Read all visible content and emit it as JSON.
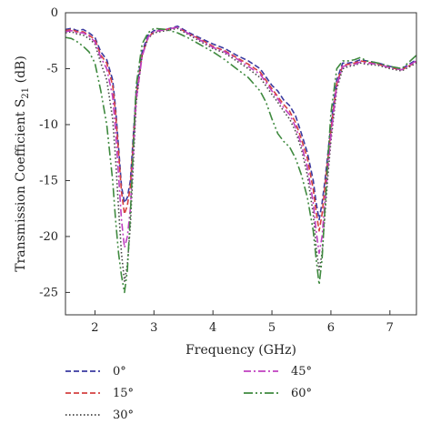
{
  "chart_data": {
    "type": "line",
    "xlabel": "Frequency (GHz)",
    "ylabel_main": "Transmission Coefficient S",
    "ylabel_sub": "21",
    "ylabel_unit": " (dB)",
    "xlim": [
      1.5,
      7.45
    ],
    "ylim": [
      -27,
      0
    ],
    "xticks": [
      2,
      3,
      4,
      5,
      6,
      7
    ],
    "yticks": [
      0,
      -5,
      -10,
      -15,
      -20,
      -25
    ],
    "grid": false,
    "legend_position": "bottom",
    "series": [
      {
        "name": "0°",
        "color": "#3a3aa0",
        "dash": "6,3",
        "x": [
          1.5,
          1.6,
          1.7,
          1.8,
          1.9,
          2.0,
          2.1,
          2.2,
          2.3,
          2.35,
          2.4,
          2.45,
          2.5,
          2.55,
          2.6,
          2.65,
          2.7,
          2.8,
          2.9,
          3.0,
          3.2,
          3.4,
          3.6,
          3.8,
          4.0,
          4.2,
          4.4,
          4.6,
          4.8,
          5.0,
          5.1,
          5.2,
          5.3,
          5.4,
          5.5,
          5.6,
          5.7,
          5.75,
          5.8,
          5.85,
          5.9,
          5.95,
          6.0,
          6.1,
          6.2,
          6.3,
          6.4,
          6.5,
          6.6,
          6.8,
          7.0,
          7.2,
          7.45
        ],
        "y": [
          -1.5,
          -1.4,
          -1.6,
          -1.5,
          -1.8,
          -2.2,
          -3.5,
          -4.2,
          -6.0,
          -8.5,
          -12.0,
          -15.5,
          -17.0,
          -16.5,
          -15.0,
          -11.0,
          -7.0,
          -3.5,
          -2.0,
          -1.6,
          -1.5,
          -1.2,
          -1.8,
          -2.3,
          -2.8,
          -3.2,
          -3.8,
          -4.3,
          -5.0,
          -6.5,
          -7.0,
          -7.8,
          -8.3,
          -9.2,
          -10.8,
          -12.5,
          -15.0,
          -17.0,
          -18.5,
          -17.0,
          -15.0,
          -12.5,
          -10.0,
          -6.0,
          -4.5,
          -4.5,
          -4.4,
          -4.2,
          -4.3,
          -4.5,
          -4.8,
          -5.0,
          -4.2
        ]
      },
      {
        "name": "15°",
        "color": "#d44040",
        "dash": "6,3",
        "x": [
          1.5,
          1.6,
          1.7,
          1.8,
          1.9,
          2.0,
          2.1,
          2.2,
          2.3,
          2.35,
          2.4,
          2.45,
          2.5,
          2.55,
          2.6,
          2.65,
          2.7,
          2.8,
          2.9,
          3.0,
          3.2,
          3.4,
          3.6,
          3.8,
          4.0,
          4.2,
          4.4,
          4.6,
          4.8,
          5.0,
          5.1,
          5.2,
          5.3,
          5.4,
          5.5,
          5.6,
          5.7,
          5.75,
          5.8,
          5.85,
          5.9,
          5.95,
          6.0,
          6.1,
          6.2,
          6.3,
          6.4,
          6.5,
          6.6,
          6.8,
          7.0,
          7.2,
          7.45
        ],
        "y": [
          -1.6,
          -1.5,
          -1.7,
          -1.7,
          -2.0,
          -2.4,
          -3.8,
          -4.5,
          -6.5,
          -9.0,
          -12.5,
          -16.0,
          -18.0,
          -17.2,
          -15.5,
          -11.5,
          -7.5,
          -3.8,
          -2.2,
          -1.7,
          -1.5,
          -1.3,
          -1.9,
          -2.4,
          -3.0,
          -3.4,
          -4.0,
          -4.6,
          -5.3,
          -6.8,
          -7.5,
          -8.2,
          -8.8,
          -9.8,
          -11.3,
          -13.0,
          -15.8,
          -17.8,
          -19.5,
          -18.0,
          -15.5,
          -13.0,
          -10.5,
          -6.3,
          -4.7,
          -4.6,
          -4.5,
          -4.3,
          -4.4,
          -4.6,
          -4.9,
          -5.1,
          -4.4
        ]
      },
      {
        "name": "30°",
        "color": "#444444",
        "dash": "1.5,2.5",
        "x": [
          1.5,
          1.6,
          1.7,
          1.8,
          1.9,
          2.0,
          2.1,
          2.2,
          2.3,
          2.35,
          2.4,
          2.45,
          2.5,
          2.55,
          2.6,
          2.65,
          2.7,
          2.8,
          2.9,
          3.0,
          3.2,
          3.4,
          3.6,
          3.8,
          4.0,
          4.2,
          4.4,
          4.6,
          4.8,
          5.0,
          5.1,
          5.2,
          5.3,
          5.4,
          5.5,
          5.6,
          5.7,
          5.75,
          5.8,
          5.85,
          5.9,
          5.95,
          6.0,
          6.1,
          6.2,
          6.3,
          6.4,
          6.5,
          6.6,
          6.8,
          7.0,
          7.2,
          7.45
        ],
        "y": [
          -1.8,
          -1.7,
          -1.9,
          -2.0,
          -2.3,
          -2.8,
          -4.5,
          -6.0,
          -9.5,
          -13.0,
          -17.5,
          -21.5,
          -24.0,
          -22.5,
          -19.0,
          -13.5,
          -8.0,
          -3.8,
          -2.3,
          -1.8,
          -1.6,
          -1.4,
          -2.0,
          -2.6,
          -3.2,
          -3.6,
          -4.3,
          -5.0,
          -5.8,
          -7.3,
          -8.0,
          -8.8,
          -9.5,
          -10.6,
          -12.2,
          -14.5,
          -18.0,
          -21.0,
          -23.0,
          -21.5,
          -18.0,
          -14.5,
          -11.5,
          -6.8,
          -5.0,
          -4.8,
          -4.7,
          -4.5,
          -4.6,
          -4.7,
          -5.0,
          -5.2,
          -4.5
        ]
      },
      {
        "name": "45°",
        "color": "#c040c0",
        "dash": "8,3,2,3",
        "x": [
          1.5,
          1.6,
          1.7,
          1.8,
          1.9,
          2.0,
          2.1,
          2.2,
          2.3,
          2.35,
          2.4,
          2.45,
          2.5,
          2.55,
          2.6,
          2.65,
          2.7,
          2.8,
          2.9,
          3.0,
          3.2,
          3.4,
          3.6,
          3.8,
          4.0,
          4.2,
          4.4,
          4.6,
          4.8,
          5.0,
          5.1,
          5.2,
          5.3,
          5.4,
          5.5,
          5.6,
          5.7,
          5.75,
          5.8,
          5.85,
          5.9,
          5.95,
          6.0,
          6.1,
          6.2,
          6.3,
          6.4,
          6.5,
          6.6,
          6.8,
          7.0,
          7.2,
          7.45
        ],
        "y": [
          -1.7,
          -1.6,
          -1.8,
          -1.8,
          -2.1,
          -2.6,
          -4.0,
          -5.0,
          -7.5,
          -10.5,
          -14.5,
          -18.5,
          -21.0,
          -20.0,
          -17.5,
          -12.5,
          -7.8,
          -3.9,
          -2.2,
          -1.7,
          -1.5,
          -1.3,
          -1.9,
          -2.5,
          -3.1,
          -3.5,
          -4.1,
          -4.8,
          -5.5,
          -7.0,
          -7.7,
          -8.5,
          -9.1,
          -10.2,
          -11.8,
          -13.8,
          -17.0,
          -19.5,
          -21.5,
          -20.0,
          -16.8,
          -13.8,
          -11.0,
          -6.5,
          -4.8,
          -4.7,
          -4.6,
          -4.4,
          -4.5,
          -4.6,
          -4.9,
          -5.1,
          -4.3
        ]
      },
      {
        "name": "60°",
        "color": "#3f8a3f",
        "dash": "10,3,2,3,2,3",
        "x": [
          1.5,
          1.6,
          1.7,
          1.8,
          1.9,
          2.0,
          2.1,
          2.2,
          2.3,
          2.35,
          2.4,
          2.45,
          2.5,
          2.55,
          2.6,
          2.65,
          2.7,
          2.8,
          2.9,
          3.0,
          3.2,
          3.4,
          3.6,
          3.8,
          4.0,
          4.2,
          4.4,
          4.6,
          4.8,
          4.9,
          5.0,
          5.1,
          5.2,
          5.3,
          5.4,
          5.5,
          5.6,
          5.7,
          5.75,
          5.8,
          5.85,
          5.9,
          5.95,
          6.0,
          6.1,
          6.2,
          6.3,
          6.4,
          6.5,
          6.6,
          6.8,
          7.0,
          7.2,
          7.45
        ],
        "y": [
          -2.2,
          -2.3,
          -2.6,
          -3.0,
          -3.5,
          -4.5,
          -7.0,
          -10.0,
          -15.0,
          -18.5,
          -21.5,
          -23.5,
          -25.0,
          -23.0,
          -18.0,
          -12.0,
          -6.5,
          -2.8,
          -1.8,
          -1.4,
          -1.5,
          -1.8,
          -2.3,
          -2.9,
          -3.5,
          -4.2,
          -5.0,
          -5.8,
          -7.0,
          -8.0,
          -9.5,
          -10.8,
          -11.5,
          -12.0,
          -13.0,
          -14.5,
          -16.5,
          -19.5,
          -22.0,
          -24.3,
          -22.0,
          -17.5,
          -13.0,
          -9.0,
          -5.0,
          -4.3,
          -4.3,
          -4.2,
          -4.0,
          -4.3,
          -4.5,
          -4.8,
          -5.0,
          -3.8
        ]
      }
    ]
  }
}
